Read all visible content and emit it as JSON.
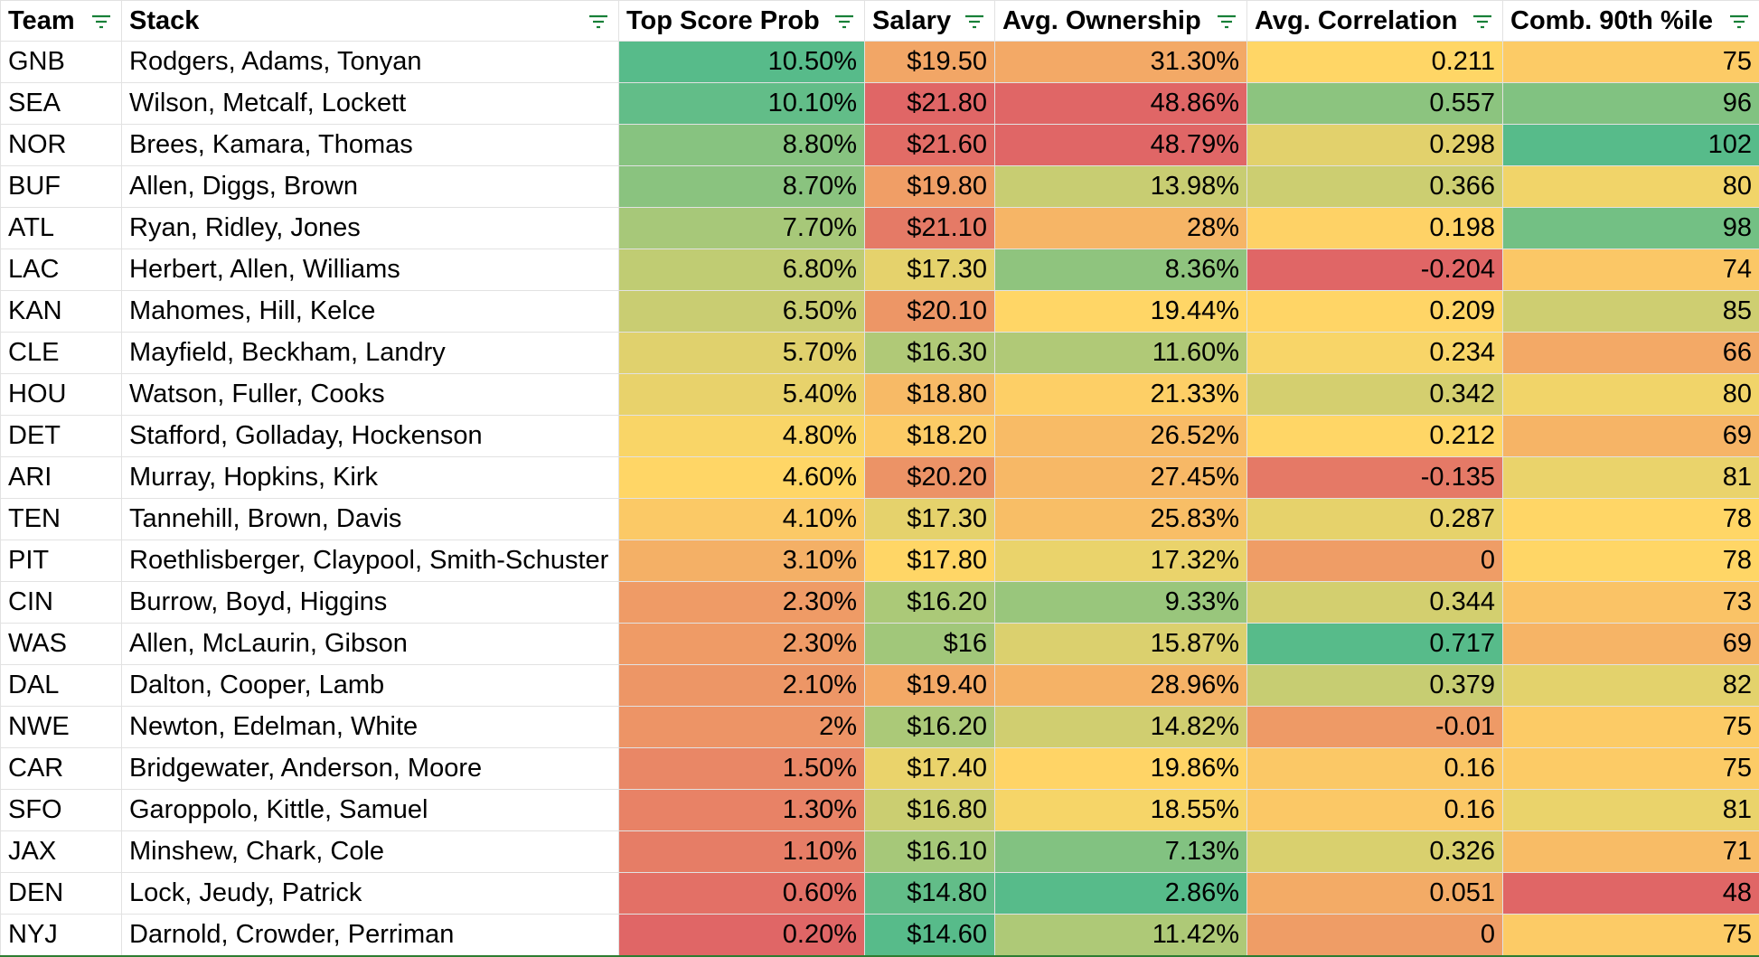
{
  "columns": [
    {
      "key": "team",
      "label": "Team"
    },
    {
      "key": "stack",
      "label": "Stack"
    },
    {
      "key": "top_score_prob",
      "label": "Top Score Prob"
    },
    {
      "key": "salary",
      "label": "Salary"
    },
    {
      "key": "avg_ownership",
      "label": "Avg. Ownership"
    },
    {
      "key": "avg_correlation",
      "label": "Avg. Correlation"
    },
    {
      "key": "comb_90th",
      "label": "Comb. 90th %ile"
    }
  ],
  "rows": [
    {
      "team": "GNB",
      "stack": "Rodgers, Adams, Tonyan",
      "top_score_prob": "10.50%",
      "salary": "$19.50",
      "avg_ownership": "31.30%",
      "avg_correlation": "0.211",
      "comb_90th": "75"
    },
    {
      "team": "SEA",
      "stack": "Wilson, Metcalf, Lockett",
      "top_score_prob": "10.10%",
      "salary": "$21.80",
      "avg_ownership": "48.86%",
      "avg_correlation": "0.557",
      "comb_90th": "96"
    },
    {
      "team": "NOR",
      "stack": "Brees, Kamara, Thomas",
      "top_score_prob": "8.80%",
      "salary": "$21.60",
      "avg_ownership": "48.79%",
      "avg_correlation": "0.298",
      "comb_90th": "102"
    },
    {
      "team": "BUF",
      "stack": "Allen, Diggs, Brown",
      "top_score_prob": "8.70%",
      "salary": "$19.80",
      "avg_ownership": "13.98%",
      "avg_correlation": "0.366",
      "comb_90th": "80"
    },
    {
      "team": "ATL",
      "stack": "Ryan, Ridley, Jones",
      "top_score_prob": "7.70%",
      "salary": "$21.10",
      "avg_ownership": "28%",
      "avg_correlation": "0.198",
      "comb_90th": "98"
    },
    {
      "team": "LAC",
      "stack": "Herbert, Allen, Williams",
      "top_score_prob": "6.80%",
      "salary": "$17.30",
      "avg_ownership": "8.36%",
      "avg_correlation": "-0.204",
      "comb_90th": "74"
    },
    {
      "team": "KAN",
      "stack": "Mahomes, Hill, Kelce",
      "top_score_prob": "6.50%",
      "salary": "$20.10",
      "avg_ownership": "19.44%",
      "avg_correlation": "0.209",
      "comb_90th": "85"
    },
    {
      "team": "CLE",
      "stack": "Mayfield, Beckham, Landry",
      "top_score_prob": "5.70%",
      "salary": "$16.30",
      "avg_ownership": "11.60%",
      "avg_correlation": "0.234",
      "comb_90th": "66"
    },
    {
      "team": "HOU",
      "stack": "Watson, Fuller, Cooks",
      "top_score_prob": "5.40%",
      "salary": "$18.80",
      "avg_ownership": "21.33%",
      "avg_correlation": "0.342",
      "comb_90th": "80"
    },
    {
      "team": "DET",
      "stack": "Stafford, Golladay, Hockenson",
      "top_score_prob": "4.80%",
      "salary": "$18.20",
      "avg_ownership": "26.52%",
      "avg_correlation": "0.212",
      "comb_90th": "69"
    },
    {
      "team": "ARI",
      "stack": "Murray, Hopkins, Kirk",
      "top_score_prob": "4.60%",
      "salary": "$20.20",
      "avg_ownership": "27.45%",
      "avg_correlation": "-0.135",
      "comb_90th": "81"
    },
    {
      "team": "TEN",
      "stack": "Tannehill, Brown, Davis",
      "top_score_prob": "4.10%",
      "salary": "$17.30",
      "avg_ownership": "25.83%",
      "avg_correlation": "0.287",
      "comb_90th": "78"
    },
    {
      "team": "PIT",
      "stack": "Roethlisberger, Claypool, Smith-Schuster",
      "top_score_prob": "3.10%",
      "salary": "$17.80",
      "avg_ownership": "17.32%",
      "avg_correlation": "0",
      "comb_90th": "78"
    },
    {
      "team": "CIN",
      "stack": "Burrow, Boyd, Higgins",
      "top_score_prob": "2.30%",
      "salary": "$16.20",
      "avg_ownership": "9.33%",
      "avg_correlation": "0.344",
      "comb_90th": "73"
    },
    {
      "team": "WAS",
      "stack": "Allen, McLaurin, Gibson",
      "top_score_prob": "2.30%",
      "salary": "$16",
      "avg_ownership": "15.87%",
      "avg_correlation": "0.717",
      "comb_90th": "69"
    },
    {
      "team": "DAL",
      "stack": "Dalton, Cooper, Lamb",
      "top_score_prob": "2.10%",
      "salary": "$19.40",
      "avg_ownership": "28.96%",
      "avg_correlation": "0.379",
      "comb_90th": "82"
    },
    {
      "team": "NWE",
      "stack": "Newton, Edelman, White",
      "top_score_prob": "2%",
      "salary": "$16.20",
      "avg_ownership": "14.82%",
      "avg_correlation": "-0.01",
      "comb_90th": "75"
    },
    {
      "team": "CAR",
      "stack": "Bridgewater, Anderson, Moore",
      "top_score_prob": "1.50%",
      "salary": "$17.40",
      "avg_ownership": "19.86%",
      "avg_correlation": "0.16",
      "comb_90th": "75"
    },
    {
      "team": "SFO",
      "stack": "Garoppolo, Kittle, Samuel",
      "top_score_prob": "1.30%",
      "salary": "$16.80",
      "avg_ownership": "18.55%",
      "avg_correlation": "0.16",
      "comb_90th": "81"
    },
    {
      "team": "JAX",
      "stack": "Minshew, Chark, Cole",
      "top_score_prob": "1.10%",
      "salary": "$16.10",
      "avg_ownership": "7.13%",
      "avg_correlation": "0.326",
      "comb_90th": "71"
    },
    {
      "team": "DEN",
      "stack": "Lock, Jeudy, Patrick",
      "top_score_prob": "0.60%",
      "salary": "$14.80",
      "avg_ownership": "2.86%",
      "avg_correlation": "0.051",
      "comb_90th": "48"
    },
    {
      "team": "NYJ",
      "stack": "Darnold, Crowder, Perriman",
      "top_score_prob": "0.20%",
      "salary": "$14.60",
      "avg_ownership": "11.42%",
      "avg_correlation": "0",
      "comb_90th": "75"
    }
  ],
  "color_scale": {
    "red": "#e06666",
    "yellow": "#ffd666",
    "green": "#57bb8a",
    "filter_icon_color": "#188038"
  },
  "color_direction": {
    "top_score_prob": "high-green",
    "salary": "low-green",
    "avg_ownership": "low-green",
    "avg_correlation": "high-green",
    "comb_90th": "high-green"
  }
}
